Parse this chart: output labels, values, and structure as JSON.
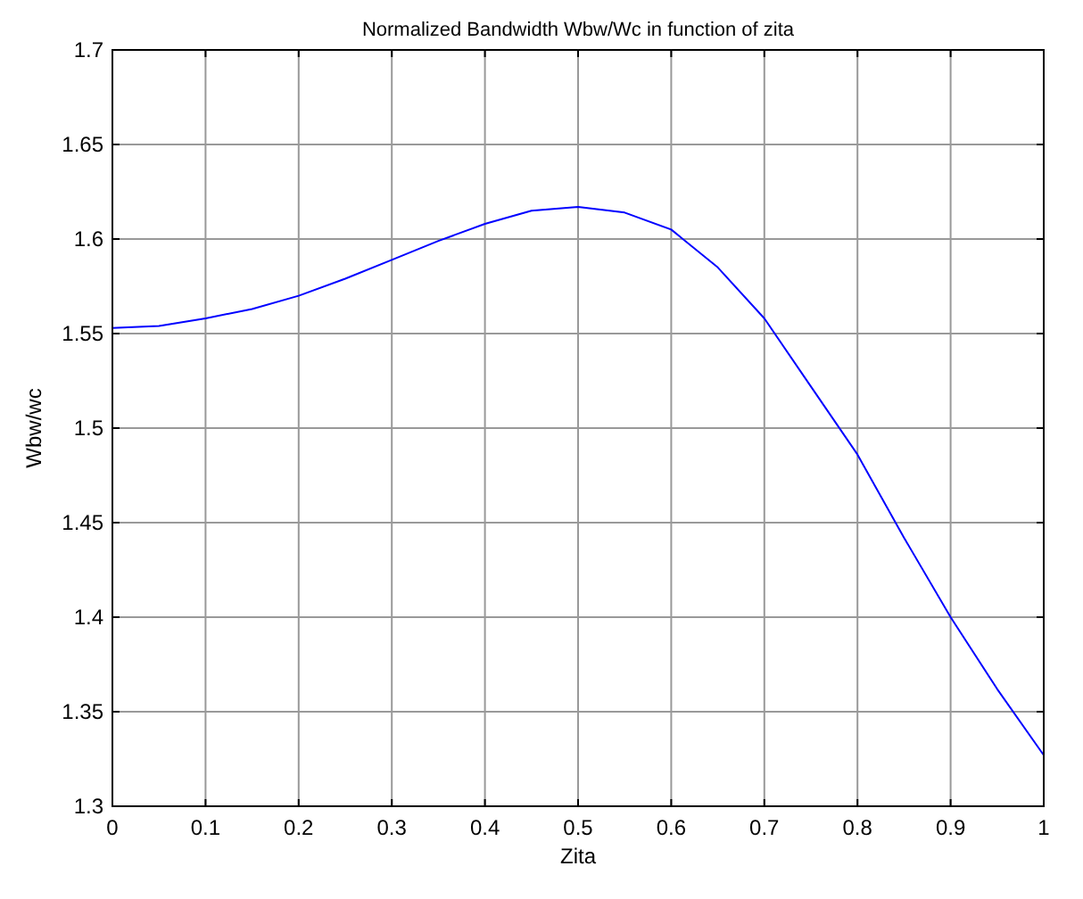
{
  "chart_data": {
    "type": "line",
    "title": "Normalized Bandwidth Wbw/Wc in function of zita",
    "xlabel": "Zita",
    "ylabel": "Wbw/wc",
    "x": [
      0,
      0.05,
      0.1,
      0.15,
      0.2,
      0.25,
      0.3,
      0.35,
      0.4,
      0.45,
      0.5,
      0.55,
      0.6,
      0.65,
      0.7,
      0.75,
      0.8,
      0.85,
      0.9,
      0.95,
      1
    ],
    "series": [
      {
        "color": "#0000ff",
        "values": [
          1.553,
          1.554,
          1.558,
          1.563,
          1.57,
          1.579,
          1.589,
          1.599,
          1.608,
          1.615,
          1.617,
          1.614,
          1.605,
          1.585,
          1.558,
          1.522,
          1.486,
          1.442,
          1.4,
          1.362,
          1.327
        ]
      }
    ],
    "xlim": [
      0,
      1
    ],
    "xticks": [
      0,
      0.1,
      0.2,
      0.3,
      0.4,
      0.5,
      0.6,
      0.7,
      0.8,
      0.9,
      1
    ],
    "ylim": [
      1.3,
      1.7
    ],
    "yticks": [
      1.3,
      1.35,
      1.4,
      1.45,
      1.5,
      1.55,
      1.6,
      1.65,
      1.7
    ],
    "grid": true,
    "marker": "none",
    "line_style": "solid"
  }
}
